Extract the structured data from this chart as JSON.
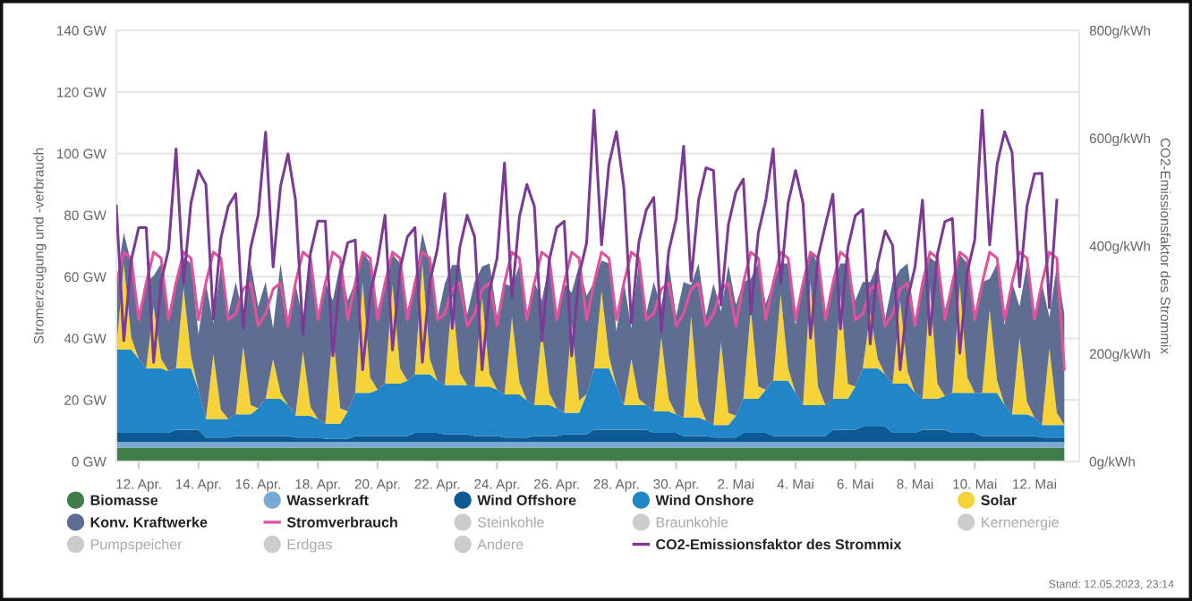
{
  "chart_data": {
    "type": "area",
    "stacked": true,
    "ylabel": "Stromerzeugung und -verbrauch",
    "y2label": "CO2-Emissionsfaktor des Strommix",
    "x": [
      "2023-04-11T06:00",
      "2023-04-11T12:00",
      "2023-04-11T18:00",
      "2023-04-12T00:00",
      "2023-04-12T06:00",
      "2023-04-12T12:00",
      "2023-04-12T18:00",
      "2023-04-13T00:00",
      "2023-04-13T06:00",
      "2023-04-13T12:00",
      "2023-04-13T18:00",
      "2023-04-14T00:00",
      "2023-04-14T06:00",
      "2023-04-14T12:00",
      "2023-04-14T18:00",
      "2023-04-15T00:00",
      "2023-04-15T06:00",
      "2023-04-15T12:00",
      "2023-04-15T18:00",
      "2023-04-16T00:00",
      "2023-04-16T06:00",
      "2023-04-16T12:00",
      "2023-04-16T18:00",
      "2023-04-17T00:00",
      "2023-04-17T06:00",
      "2023-04-17T12:00",
      "2023-04-17T18:00",
      "2023-04-18T00:00",
      "2023-04-18T06:00",
      "2023-04-18T12:00",
      "2023-04-18T18:00",
      "2023-04-19T00:00",
      "2023-04-19T06:00",
      "2023-04-19T12:00",
      "2023-04-19T18:00",
      "2023-04-20T00:00",
      "2023-04-20T06:00",
      "2023-04-20T12:00",
      "2023-04-20T18:00",
      "2023-04-21T00:00",
      "2023-04-21T06:00",
      "2023-04-21T12:00",
      "2023-04-21T18:00",
      "2023-04-22T00:00",
      "2023-04-22T06:00",
      "2023-04-22T12:00",
      "2023-04-22T18:00",
      "2023-04-23T00:00",
      "2023-04-23T06:00",
      "2023-04-23T12:00",
      "2023-04-23T18:00",
      "2023-04-24T00:00",
      "2023-04-24T06:00",
      "2023-04-24T12:00",
      "2023-04-24T18:00",
      "2023-04-25T00:00",
      "2023-04-25T06:00",
      "2023-04-25T12:00",
      "2023-04-25T18:00",
      "2023-04-26T00:00",
      "2023-04-26T06:00",
      "2023-04-26T12:00",
      "2023-04-26T18:00",
      "2023-04-27T00:00",
      "2023-04-27T06:00",
      "2023-04-27T12:00",
      "2023-04-27T18:00",
      "2023-04-28T00:00",
      "2023-04-28T06:00",
      "2023-04-28T12:00",
      "2023-04-28T18:00",
      "2023-04-29T00:00",
      "2023-04-29T06:00",
      "2023-04-29T12:00",
      "2023-04-29T18:00",
      "2023-04-30T00:00",
      "2023-04-30T06:00",
      "2023-04-30T12:00",
      "2023-04-30T18:00",
      "2023-05-01T00:00",
      "2023-05-01T06:00",
      "2023-05-01T12:00",
      "2023-05-01T18:00",
      "2023-05-02T00:00",
      "2023-05-02T06:00",
      "2023-05-02T12:00",
      "2023-05-02T18:00",
      "2023-05-03T00:00",
      "2023-05-03T06:00",
      "2023-05-03T12:00",
      "2023-05-03T18:00",
      "2023-05-04T00:00",
      "2023-05-04T06:00",
      "2023-05-04T12:00",
      "2023-05-04T18:00",
      "2023-05-05T00:00",
      "2023-05-05T06:00",
      "2023-05-05T12:00",
      "2023-05-05T18:00",
      "2023-05-06T00:00",
      "2023-05-06T06:00",
      "2023-05-06T12:00",
      "2023-05-06T18:00",
      "2023-05-07T00:00",
      "2023-05-07T06:00",
      "2023-05-07T12:00",
      "2023-05-07T18:00",
      "2023-05-08T00:00",
      "2023-05-08T06:00",
      "2023-05-08T12:00",
      "2023-05-08T18:00",
      "2023-05-09T00:00",
      "2023-05-09T06:00",
      "2023-05-09T12:00",
      "2023-05-09T18:00",
      "2023-05-10T00:00",
      "2023-05-10T06:00",
      "2023-05-10T12:00",
      "2023-05-10T18:00",
      "2023-05-11T00:00",
      "2023-05-11T06:00",
      "2023-05-11T12:00",
      "2023-05-11T18:00",
      "2023-05-12T00:00",
      "2023-05-12T06:00",
      "2023-05-12T12:00",
      "2023-05-12T18:00",
      "2023-05-13T00:00"
    ],
    "xlim": [
      "2023-04-11T06:00",
      "2023-05-13T12:00"
    ],
    "xticks": [
      {
        "value": "2023-04-12",
        "label": "12. Apr."
      },
      {
        "value": "2023-04-14",
        "label": "14. Apr."
      },
      {
        "value": "2023-04-16",
        "label": "16. Apr."
      },
      {
        "value": "2023-04-18",
        "label": "18. Apr."
      },
      {
        "value": "2023-04-20",
        "label": "20. Apr."
      },
      {
        "value": "2023-04-22",
        "label": "22. Apr."
      },
      {
        "value": "2023-04-24",
        "label": "24. Apr."
      },
      {
        "value": "2023-04-26",
        "label": "26. Apr."
      },
      {
        "value": "2023-04-28",
        "label": "28. Apr."
      },
      {
        "value": "2023-04-30",
        "label": "30. Apr."
      },
      {
        "value": "2023-05-02",
        "label": "2. Mai"
      },
      {
        "value": "2023-05-04",
        "label": "4. Mai"
      },
      {
        "value": "2023-05-06",
        "label": "6. Mai"
      },
      {
        "value": "2023-05-08",
        "label": "8. Mai"
      },
      {
        "value": "2023-05-10",
        "label": "10. Mai"
      },
      {
        "value": "2023-05-12",
        "label": "12. Mai"
      }
    ],
    "ylim": [
      0,
      140
    ],
    "yticks": [
      {
        "value": 0,
        "label": "0 GW"
      },
      {
        "value": 20,
        "label": "20 GW"
      },
      {
        "value": 40,
        "label": "40 GW"
      },
      {
        "value": 60,
        "label": "60 GW"
      },
      {
        "value": 80,
        "label": "80 GW"
      },
      {
        "value": 100,
        "label": "100 GW"
      },
      {
        "value": 120,
        "label": "120 GW"
      },
      {
        "value": 140,
        "label": "140 GW"
      }
    ],
    "y2lim": [
      0,
      800
    ],
    "y2ticks": [
      {
        "value": 0,
        "label": "0g/kWh"
      },
      {
        "value": 200,
        "label": "200g/kWh"
      },
      {
        "value": 400,
        "label": "400g/kWh"
      },
      {
        "value": 600,
        "label": "600g/kWh"
      },
      {
        "value": 800,
        "label": "800g/kWh"
      }
    ],
    "grid": "y",
    "legend": "bottom",
    "series": [
      {
        "name": "Biomasse",
        "color": "#3f7d4a",
        "values": [
          4.5,
          4.5,
          4.5,
          4.5,
          4.5,
          4.5,
          4.5,
          4.5,
          4.5,
          4.5,
          4.5,
          4.5,
          4.5,
          4.5,
          4.5,
          4.5,
          4.5,
          4.5,
          4.5,
          4.5,
          4.5,
          4.5,
          4.5,
          4.5,
          4.5,
          4.5,
          4.5,
          4.5,
          4.5,
          4.5,
          4.5,
          4.5,
          4.5,
          4.5,
          4.5,
          4.5,
          4.5,
          4.5,
          4.5,
          4.5,
          4.5,
          4.5,
          4.5,
          4.5,
          4.5,
          4.5,
          4.5,
          4.5,
          4.5,
          4.5,
          4.5,
          4.5,
          4.5,
          4.5,
          4.5,
          4.5,
          4.5,
          4.5,
          4.5,
          4.5,
          4.5,
          4.5,
          4.5,
          4.5,
          4.5,
          4.5,
          4.5,
          4.5,
          4.5,
          4.5,
          4.5,
          4.5,
          4.5,
          4.5,
          4.5,
          4.5,
          4.5,
          4.5,
          4.5,
          4.5,
          4.5,
          4.5,
          4.5,
          4.5,
          4.5,
          4.5,
          4.5,
          4.5,
          4.5,
          4.5,
          4.5,
          4.5,
          4.5,
          4.5,
          4.5,
          4.5,
          4.5,
          4.5,
          4.5,
          4.5,
          4.5,
          4.5,
          4.5,
          4.5,
          4.5,
          4.5,
          4.5,
          4.5,
          4.5,
          4.5,
          4.5,
          4.5,
          4.5,
          4.5,
          4.5,
          4.5,
          4.5,
          4.5,
          4.5,
          4.5,
          4.5,
          4.5,
          4.5,
          4.5,
          4.5,
          4.5,
          4.5,
          4.5
        ]
      },
      {
        "name": "Wasserkraft",
        "color": "#7aaad4",
        "values": [
          1.8,
          1.8,
          1.8,
          1.8,
          1.8,
          1.8,
          1.8,
          1.8,
          1.8,
          1.8,
          1.8,
          1.8,
          1.8,
          1.8,
          1.8,
          1.8,
          1.8,
          1.8,
          1.8,
          1.8,
          1.8,
          1.8,
          1.8,
          1.8,
          1.8,
          1.8,
          1.8,
          1.8,
          1.8,
          1.8,
          1.8,
          1.8,
          1.8,
          1.8,
          1.8,
          1.8,
          1.8,
          1.8,
          1.8,
          1.8,
          1.8,
          1.8,
          1.8,
          1.8,
          1.8,
          1.8,
          1.8,
          1.8,
          1.8,
          1.8,
          1.8,
          1.8,
          1.8,
          1.8,
          1.8,
          1.8,
          1.8,
          1.8,
          1.8,
          1.8,
          1.8,
          1.8,
          1.8,
          1.8,
          1.8,
          1.8,
          1.8,
          1.8,
          1.8,
          1.8,
          1.8,
          1.8,
          1.8,
          1.8,
          1.8,
          1.8,
          1.8,
          1.8,
          1.8,
          1.8,
          1.8,
          1.8,
          1.8,
          1.8,
          1.8,
          1.8,
          1.8,
          1.8,
          1.8,
          1.8,
          1.8,
          1.8,
          1.8,
          1.8,
          1.8,
          1.8,
          1.8,
          1.8,
          1.8,
          1.8,
          1.8,
          1.8,
          1.8,
          1.8,
          1.8,
          1.8,
          1.8,
          1.8,
          1.8,
          1.8,
          1.8,
          1.8,
          1.8,
          1.8,
          1.8,
          1.8,
          1.8,
          1.8,
          1.8,
          1.8,
          1.8,
          1.8,
          1.8,
          1.8,
          1.8,
          1.8,
          1.8,
          1.8
        ]
      },
      {
        "name": "Wind Offshore",
        "color": "#0b5a94",
        "values": [
          3,
          3,
          3,
          3,
          3,
          3,
          3,
          3,
          4,
          4,
          4,
          4,
          1.5,
          1.5,
          1.5,
          1.5,
          2,
          2,
          2,
          2,
          2,
          2,
          2,
          2,
          1.5,
          1.5,
          1.5,
          1.5,
          1,
          1,
          1,
          1,
          2,
          2,
          2,
          2,
          2,
          2,
          2,
          2,
          3,
          3,
          3,
          3,
          2.5,
          2.5,
          2.5,
          2.5,
          2,
          2,
          2,
          2,
          1.5,
          1.5,
          1.5,
          1.5,
          2,
          2,
          2,
          2,
          2.5,
          2.5,
          2.5,
          2.5,
          4,
          4,
          4,
          4,
          4,
          4,
          4,
          4,
          3,
          3,
          3,
          3,
          2,
          2,
          2,
          2,
          1.5,
          1.5,
          1.5,
          1.5,
          3,
          3,
          3,
          3,
          2,
          2,
          2,
          2,
          2,
          2,
          2,
          2,
          4,
          4,
          4,
          4,
          5,
          5,
          5,
          5,
          3,
          3,
          3,
          3,
          4,
          4,
          4,
          4,
          3,
          3,
          3,
          3,
          2,
          2,
          2,
          2,
          2,
          2,
          2,
          2,
          1.5,
          1.5,
          1.5,
          1.5
        ]
      },
      {
        "name": "Wind Onshore",
        "color": "#2186c8",
        "values": [
          27,
          27,
          27,
          24,
          21,
          21,
          21,
          20,
          20,
          20,
          20,
          13,
          6,
          6,
          6,
          6,
          7,
          7,
          7,
          9,
          12,
          12,
          12,
          10,
          7,
          7,
          7,
          6,
          5,
          5,
          5,
          9,
          14,
          14,
          14,
          15,
          17,
          17,
          17,
          18,
          19,
          19,
          19,
          17,
          16,
          16,
          16,
          16,
          16,
          16,
          16,
          15,
          14,
          14,
          14,
          12,
          10,
          10,
          10,
          9,
          7,
          7,
          7,
          13,
          20,
          20,
          20,
          14,
          8,
          8,
          8,
          8,
          7,
          7,
          7,
          6,
          6,
          6,
          6,
          5,
          4,
          4,
          4,
          7,
          11,
          11,
          11,
          14,
          18,
          18,
          18,
          14,
          10,
          10,
          10,
          10,
          10,
          10,
          10,
          14,
          19,
          19,
          19,
          17,
          16,
          16,
          16,
          13,
          10,
          10,
          10,
          11,
          13,
          13,
          13,
          13,
          14,
          14,
          14,
          10,
          7,
          7,
          7,
          6,
          4,
          4,
          4,
          4
        ]
      },
      {
        "name": "Solar",
        "color": "#f7d33a",
        "values": [
          0,
          28,
          4,
          0,
          0,
          20,
          3,
          0,
          0,
          26,
          4,
          0,
          0,
          21,
          3,
          0,
          0,
          22,
          3,
          0,
          0,
          13,
          2,
          0,
          0,
          21,
          3,
          0,
          0,
          30,
          5,
          0,
          0,
          36,
          5,
          0,
          0,
          32,
          5,
          0,
          0,
          36,
          5,
          0,
          0,
          29,
          4,
          0,
          0,
          29,
          4,
          0,
          0,
          25,
          4,
          0,
          0,
          24,
          4,
          0,
          0,
          29,
          4,
          0,
          0,
          25,
          4,
          0,
          0,
          15,
          2,
          0,
          0,
          24,
          4,
          0,
          0,
          33,
          5,
          0,
          0,
          27,
          4,
          0,
          0,
          29,
          4,
          0,
          0,
          28,
          4,
          0,
          0,
          40,
          6,
          0,
          0,
          34,
          5,
          0,
          0,
          18,
          3,
          0,
          0,
          27,
          4,
          0,
          0,
          36,
          5,
          0,
          0,
          35,
          5,
          0,
          0,
          27,
          4,
          0,
          0,
          25,
          4,
          0,
          0,
          25,
          4,
          0
        ]
      },
      {
        "name": "Konv. Kraftwerke",
        "color": "#5d6e92",
        "values": [
          22,
          10,
          24,
          12,
          28,
          10,
          31,
          18,
          28,
          10,
          30,
          18,
          44,
          10,
          47,
          34,
          43,
          10,
          46,
          33,
          38,
          10,
          42,
          28,
          43,
          10,
          46,
          33,
          46,
          10,
          47,
          36,
          36,
          10,
          37,
          26,
          33,
          10,
          34,
          23,
          30,
          10,
          31,
          20,
          33,
          10,
          35,
          23,
          34,
          10,
          36,
          24,
          36,
          10,
          38,
          26,
          40,
          10,
          42,
          30,
          42,
          10,
          44,
          32,
          28,
          10,
          30,
          18,
          40,
          10,
          44,
          30,
          42,
          10,
          44,
          32,
          44,
          10,
          45,
          34,
          46,
          10,
          48,
          36,
          38,
          10,
          40,
          28,
          32,
          10,
          34,
          22,
          40,
          10,
          40,
          30,
          38,
          10,
          39,
          28,
          28,
          10,
          31,
          18,
          33,
          10,
          35,
          23,
          38,
          10,
          39,
          28,
          36,
          10,
          37,
          26,
          36,
          10,
          38,
          26,
          43,
          10,
          45,
          33,
          46,
          10,
          48,
          36
        ]
      },
      {
        "name": "Stromverbrauch",
        "type": "line",
        "color": "#e0529c",
        "values": [
          58,
          68,
          66,
          46,
          58,
          68,
          66,
          46,
          58,
          68,
          66,
          46,
          58,
          68,
          66,
          46,
          48,
          56,
          58,
          44,
          48,
          56,
          58,
          44,
          58,
          68,
          66,
          46,
          58,
          68,
          66,
          46,
          58,
          68,
          66,
          46,
          58,
          68,
          66,
          46,
          58,
          68,
          66,
          46,
          48,
          56,
          58,
          44,
          48,
          56,
          58,
          44,
          58,
          68,
          66,
          46,
          58,
          68,
          66,
          46,
          58,
          68,
          66,
          46,
          58,
          68,
          66,
          46,
          58,
          68,
          66,
          46,
          48,
          56,
          58,
          44,
          48,
          56,
          58,
          44,
          48,
          56,
          58,
          44,
          58,
          68,
          66,
          46,
          58,
          68,
          66,
          46,
          58,
          68,
          66,
          46,
          58,
          68,
          66,
          46,
          48,
          56,
          58,
          44,
          48,
          56,
          58,
          44,
          58,
          68,
          66,
          46,
          58,
          68,
          66,
          46,
          58,
          68,
          66,
          46,
          58,
          68,
          66,
          46,
          58,
          68,
          66,
          30
        ]
      },
      {
        "name": "Steinkohle",
        "color": "#cccccc",
        "values": [
          null,
          null,
          null,
          null,
          null,
          null,
          null,
          null,
          null,
          null,
          null,
          null,
          null,
          null,
          null,
          null,
          null,
          null,
          null,
          null,
          null,
          null,
          null,
          null,
          null,
          null,
          null,
          null,
          null,
          null,
          null,
          null,
          null,
          null,
          null,
          null,
          null,
          null,
          null,
          null,
          null,
          null,
          null,
          null,
          null,
          null,
          null,
          null,
          null,
          null,
          null,
          null,
          null,
          null,
          null,
          null,
          null,
          null,
          null,
          null,
          null,
          null,
          null,
          null,
          null,
          null,
          null,
          null,
          null,
          null,
          null,
          null,
          null,
          null,
          null,
          null,
          null,
          null,
          null,
          null,
          null,
          null,
          null,
          null,
          null,
          null,
          null,
          null,
          null,
          null,
          null,
          null,
          null,
          null,
          null,
          null,
          null,
          null,
          null,
          null,
          null,
          null,
          null,
          null,
          null,
          null,
          null,
          null,
          null,
          null,
          null,
          null,
          null,
          null,
          null,
          null,
          null,
          null,
          null,
          null,
          null,
          null,
          null,
          null,
          null,
          null,
          null,
          null
        ]
      },
      {
        "name": "Braunkohle",
        "color": "#cccccc",
        "values": [
          null,
          null,
          null,
          null,
          null,
          null,
          null,
          null,
          null,
          null,
          null,
          null,
          null,
          null,
          null,
          null,
          null,
          null,
          null,
          null,
          null,
          null,
          null,
          null,
          null,
          null,
          null,
          null,
          null,
          null,
          null,
          null,
          null,
          null,
          null,
          null,
          null,
          null,
          null,
          null,
          null,
          null,
          null,
          null,
          null,
          null,
          null,
          null,
          null,
          null,
          null,
          null,
          null,
          null,
          null,
          null,
          null,
          null,
          null,
          null,
          null,
          null,
          null,
          null,
          null,
          null,
          null,
          null,
          null,
          null,
          null,
          null,
          null,
          null,
          null,
          null,
          null,
          null,
          null,
          null,
          null,
          null,
          null,
          null,
          null,
          null,
          null,
          null,
          null,
          null,
          null,
          null,
          null,
          null,
          null,
          null,
          null,
          null,
          null,
          null,
          null,
          null,
          null,
          null,
          null,
          null,
          null,
          null,
          null,
          null,
          null,
          null,
          null,
          null,
          null,
          null,
          null,
          null,
          null,
          null,
          null,
          null,
          null,
          null,
          null,
          null,
          null,
          null
        ]
      },
      {
        "name": "Kernenergie",
        "color": "#cccccc",
        "values": [
          null,
          null,
          null,
          null,
          null,
          null,
          null,
          null,
          null,
          null,
          null,
          null,
          null,
          null,
          null,
          null,
          null,
          null,
          null,
          null,
          null,
          null,
          null,
          null,
          null,
          null,
          null,
          null,
          null,
          null,
          null,
          null,
          null,
          null,
          null,
          null,
          null,
          null,
          null,
          null,
          null,
          null,
          null,
          null,
          null,
          null,
          null,
          null,
          null,
          null,
          null,
          null,
          null,
          null,
          null,
          null,
          null,
          null,
          null,
          null,
          null,
          null,
          null,
          null,
          null,
          null,
          null,
          null,
          null,
          null,
          null,
          null,
          null,
          null,
          null,
          null,
          null,
          null,
          null,
          null,
          null,
          null,
          null,
          null,
          null,
          null,
          null,
          null,
          null,
          null,
          null,
          null,
          null,
          null,
          null,
          null,
          null,
          null,
          null,
          null,
          null,
          null,
          null,
          null,
          null,
          null,
          null,
          null,
          null,
          null,
          null,
          null,
          null,
          null,
          null,
          null,
          null,
          null,
          null,
          null,
          null,
          null,
          null,
          null,
          null,
          null,
          null,
          null
        ]
      },
      {
        "name": "Pumpspeicher",
        "color": "#cccccc",
        "values": [
          null,
          null,
          null,
          null,
          null,
          null,
          null,
          null,
          null,
          null,
          null,
          null,
          null,
          null,
          null,
          null,
          null,
          null,
          null,
          null,
          null,
          null,
          null,
          null,
          null,
          null,
          null,
          null,
          null,
          null,
          null,
          null,
          null,
          null,
          null,
          null,
          null,
          null,
          null,
          null,
          null,
          null,
          null,
          null,
          null,
          null,
          null,
          null,
          null,
          null,
          null,
          null,
          null,
          null,
          null,
          null,
          null,
          null,
          null,
          null,
          null,
          null,
          null,
          null,
          null,
          null,
          null,
          null,
          null,
          null,
          null,
          null,
          null,
          null,
          null,
          null,
          null,
          null,
          null,
          null,
          null,
          null,
          null,
          null,
          null,
          null,
          null,
          null,
          null,
          null,
          null,
          null,
          null,
          null,
          null,
          null,
          null,
          null,
          null,
          null,
          null,
          null,
          null,
          null,
          null,
          null,
          null,
          null,
          null,
          null,
          null,
          null,
          null,
          null,
          null,
          null,
          null,
          null,
          null,
          null,
          null,
          null,
          null,
          null,
          null,
          null,
          null,
          null
        ]
      },
      {
        "name": "Erdgas",
        "color": "#cccccc",
        "values": [
          null,
          null,
          null,
          null,
          null,
          null,
          null,
          null,
          null,
          null,
          null,
          null,
          null,
          null,
          null,
          null,
          null,
          null,
          null,
          null,
          null,
          null,
          null,
          null,
          null,
          null,
          null,
          null,
          null,
          null,
          null,
          null,
          null,
          null,
          null,
          null,
          null,
          null,
          null,
          null,
          null,
          null,
          null,
          null,
          null,
          null,
          null,
          null,
          null,
          null,
          null,
          null,
          null,
          null,
          null,
          null,
          null,
          null,
          null,
          null,
          null,
          null,
          null,
          null,
          null,
          null,
          null,
          null,
          null,
          null,
          null,
          null,
          null,
          null,
          null,
          null,
          null,
          null,
          null,
          null,
          null,
          null,
          null,
          null,
          null,
          null,
          null,
          null,
          null,
          null,
          null,
          null,
          null,
          null,
          null,
          null,
          null,
          null,
          null,
          null,
          null,
          null,
          null,
          null,
          null,
          null,
          null,
          null,
          null,
          null,
          null,
          null,
          null,
          null,
          null,
          null,
          null,
          null,
          null,
          null,
          null,
          null,
          null,
          null,
          null,
          null,
          null,
          null
        ]
      },
      {
        "name": "Andere",
        "color": "#cccccc",
        "values": [
          null,
          null,
          null,
          null,
          null,
          null,
          null,
          null,
          null,
          null,
          null,
          null,
          null,
          null,
          null,
          null,
          null,
          null,
          null,
          null,
          null,
          null,
          null,
          null,
          null,
          null,
          null,
          null,
          null,
          null,
          null,
          null,
          null,
          null,
          null,
          null,
          null,
          null,
          null,
          null,
          null,
          null,
          null,
          null,
          null,
          null,
          null,
          null,
          null,
          null,
          null,
          null,
          null,
          null,
          null,
          null,
          null,
          null,
          null,
          null,
          null,
          null,
          null,
          null,
          null,
          null,
          null,
          null,
          null,
          null,
          null,
          null,
          null,
          null,
          null,
          null,
          null,
          null,
          null,
          null,
          null,
          null,
          null,
          null,
          null,
          null,
          null,
          null,
          null,
          null,
          null,
          null,
          null,
          null,
          null,
          null,
          null,
          null,
          null,
          null,
          null,
          null,
          null,
          null,
          null,
          null,
          null,
          null,
          null,
          null,
          null,
          null,
          null,
          null,
          null,
          null,
          null,
          null,
          null,
          null,
          null,
          null,
          null,
          null,
          null,
          null,
          null,
          null
        ]
      },
      {
        "name": "CO2-Emissionsfaktor des Strommix",
        "type": "line",
        "axis": "y2",
        "color": "#7b3a96",
        "values": [
          474,
          224,
          374,
          434,
          434,
          184,
          334,
          394,
          580,
          330,
          480,
          540,
          514,
          264,
          414,
          474,
          497,
          247,
          397,
          457,
          611,
          361,
          511,
          571,
          486,
          236,
          386,
          446,
          446,
          196,
          346,
          406,
          411,
          170,
          311,
          371,
          457,
          207,
          357,
          417,
          434,
          184,
          334,
          394,
          497,
          247,
          397,
          457,
          417,
          170,
          317,
          377,
          554,
          304,
          454,
          514,
          474,
          224,
          374,
          434,
          446,
          196,
          346,
          406,
          652,
          402,
          552,
          612,
          507,
          257,
          407,
          467,
          490,
          240,
          390,
          450,
          585,
          335,
          485,
          545,
          540,
          290,
          440,
          500,
          524,
          274,
          424,
          484,
          580,
          330,
          480,
          540,
          479,
          229,
          379,
          439,
          496,
          246,
          396,
          456,
          468,
          218,
          368,
          428,
          401,
          170,
          301,
          361,
          485,
          235,
          385,
          445,
          451,
          201,
          351,
          411,
          652,
          402,
          552,
          612,
          574,
          324,
          474,
          534,
          535,
          285,
          485,
          null
        ]
      }
    ],
    "annotations": [
      "Stand: 12.05.2023, 23:14"
    ]
  }
}
